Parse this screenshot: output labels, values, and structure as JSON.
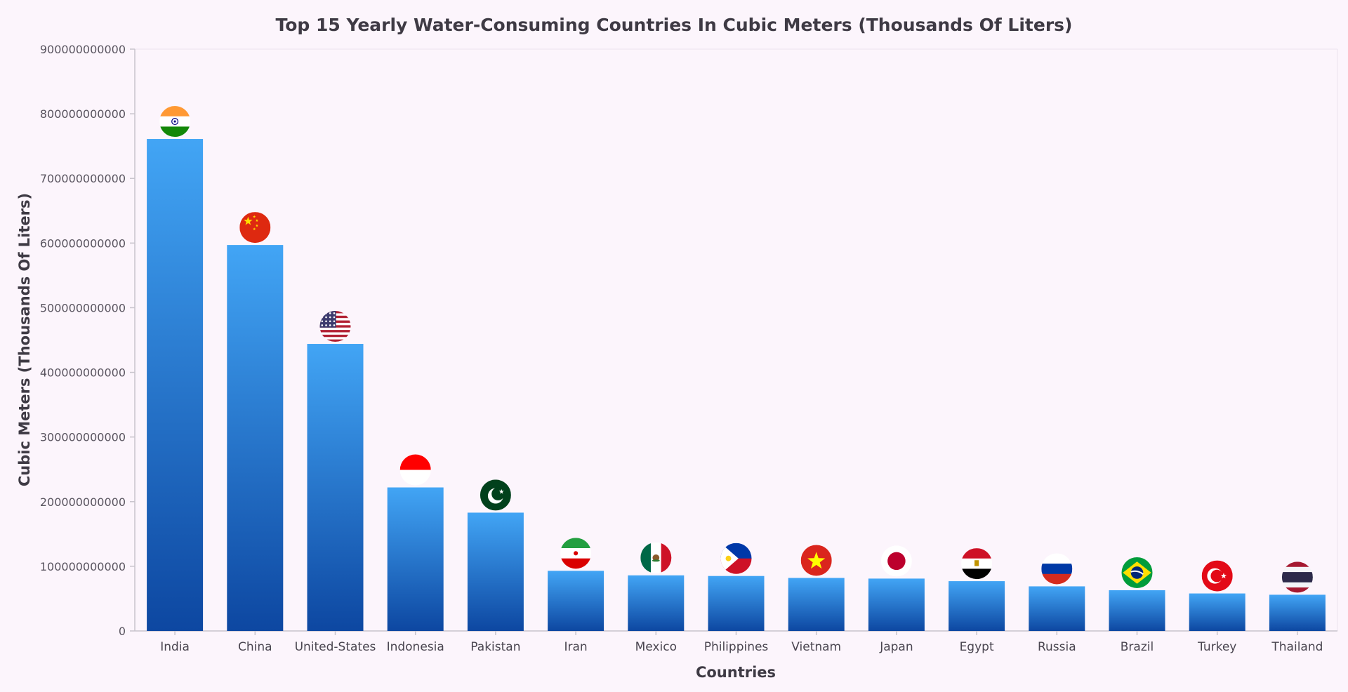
{
  "chart_data": {
    "type": "bar",
    "title": "Top 15 Yearly Water-Consuming Countries In Cubic Meters (Thousands Of Liters)",
    "xlabel": "Countries",
    "ylabel": "Cubic Meters (Thousands Of Liters)",
    "ylim": [
      0,
      900000000000
    ],
    "yticks": [
      {
        "value": 0,
        "label": "0"
      },
      {
        "value": 100000000000,
        "label": "100000000000"
      },
      {
        "value": 200000000000,
        "label": "200000000000"
      },
      {
        "value": 300000000000,
        "label": "300000000000"
      },
      {
        "value": 400000000000,
        "label": "400000000000"
      },
      {
        "value": 500000000000,
        "label": "500000000000"
      },
      {
        "value": 600000000000,
        "label": "600000000000"
      },
      {
        "value": 700000000000,
        "label": "700000000000"
      },
      {
        "value": 800000000000,
        "label": "800000000000"
      },
      {
        "value": 900000000000,
        "label": "900000000000"
      }
    ],
    "categories": [
      "India",
      "China",
      "United-States",
      "Indonesia",
      "Pakistan",
      "Iran",
      "Mexico",
      "Philippines",
      "Vietnam",
      "Japan",
      "Egypt",
      "Russia",
      "Brazil",
      "Turkey",
      "Thailand"
    ],
    "values": [
      761000000000,
      597000000000,
      444000000000,
      222000000000,
      183000000000,
      93000000000,
      86000000000,
      85000000000,
      82000000000,
      81000000000,
      77000000000,
      69000000000,
      63000000000,
      58000000000,
      56000000000
    ],
    "flags": [
      "india-flag",
      "china-flag",
      "usa-flag",
      "indonesia-flag",
      "pakistan-flag",
      "iran-flag",
      "mexico-flag",
      "philippines-flag",
      "vietnam-flag",
      "japan-flag",
      "egypt-flag",
      "russia-flag",
      "brazil-flag",
      "turkey-flag",
      "thailand-flag"
    ],
    "grid": false,
    "legend": "none",
    "colors": {
      "bar_top": "#42a5f5",
      "bar_bottom": "#0d47a1",
      "axis": "#c8c4cc",
      "background": "#fcf5fc"
    }
  }
}
